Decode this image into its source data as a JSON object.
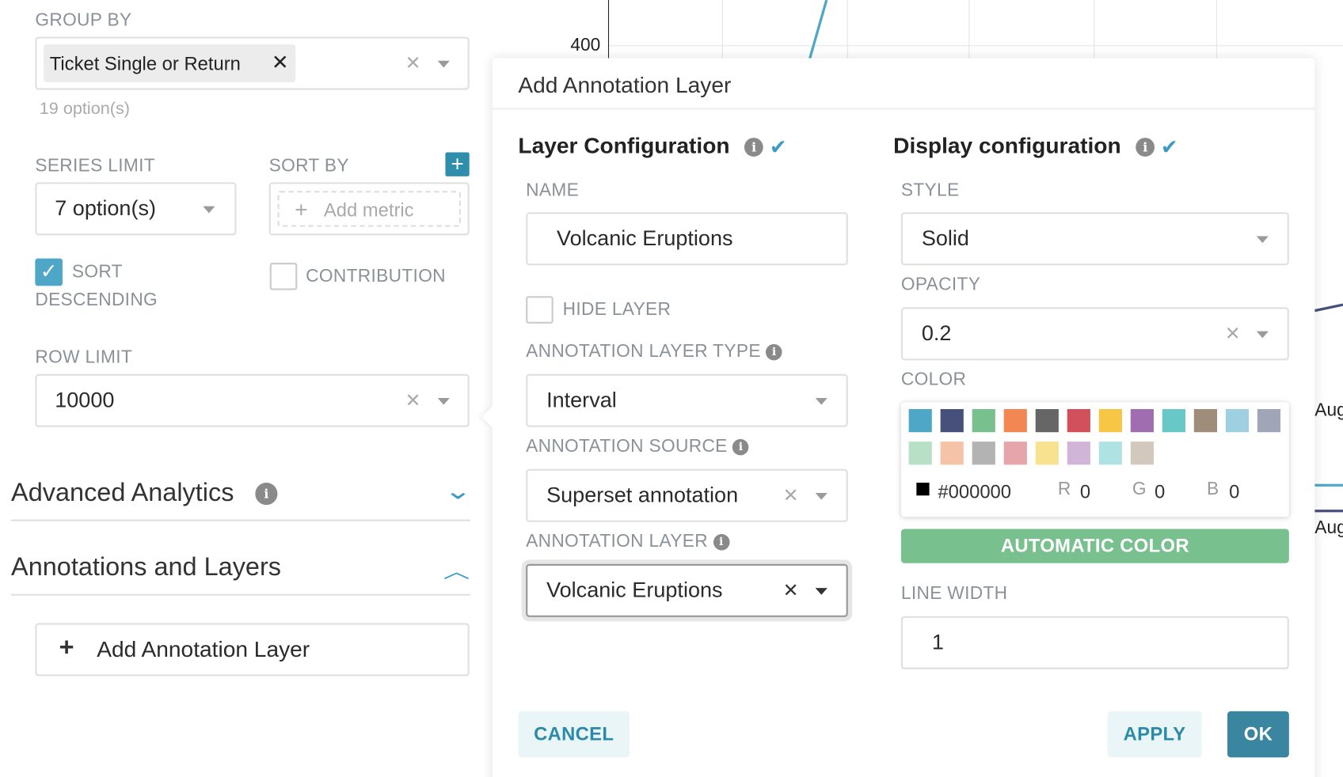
{
  "left_panel": {
    "group_by": {
      "label": "GROUP BY",
      "tag": "Ticket Single or Return",
      "hint": "19 option(s)"
    },
    "series_limit": {
      "label": "SERIES LIMIT",
      "value": "7 option(s)"
    },
    "sort_by": {
      "label": "SORT BY",
      "placeholder": "Add metric"
    },
    "sort_descending": {
      "label_line1": "SORT",
      "label_line2": "DESCENDING",
      "checked": true
    },
    "contribution": {
      "label": "CONTRIBUTION",
      "checked": false
    },
    "row_limit": {
      "label": "ROW LIMIT",
      "value": "10000"
    },
    "advanced_analytics": "Advanced Analytics",
    "annotations_and_layers": "Annotations and Layers",
    "add_annotation_layer": "Add Annotation Layer"
  },
  "chart": {
    "y_tick": "400",
    "x_ticks": [
      "Aug",
      "Aug"
    ]
  },
  "modal": {
    "title": "Add Annotation Layer",
    "layer_config": {
      "heading": "Layer Configuration",
      "name_label": "NAME",
      "name_value": "Volcanic Eruptions",
      "hide_layer_label": "HIDE LAYER",
      "hide_layer_checked": false,
      "type_label": "ANNOTATION LAYER TYPE",
      "type_value": "Interval",
      "source_label": "ANNOTATION SOURCE",
      "source_value": "Superset annotation",
      "layer_label": "ANNOTATION LAYER",
      "layer_value": "Volcanic Eruptions"
    },
    "display_config": {
      "heading": "Display configuration",
      "style_label": "STYLE",
      "style_value": "Solid",
      "opacity_label": "OPACITY",
      "opacity_value": "0.2",
      "color_label": "COLOR",
      "swatches": [
        "#4ea7c7",
        "#46507a",
        "#78c18f",
        "#f28753",
        "#666666",
        "#d1505b",
        "#f6c644",
        "#a06db0",
        "#68c8c8",
        "#9f8c79",
        "#9fd0e2",
        "#a0a5b8",
        "#b8e0c6",
        "#f5c3a8",
        "#b3b3b3",
        "#e5a5aa",
        "#f9e28f",
        "#d0b5d8",
        "#afe3e3",
        "#d2c8be"
      ],
      "hex": "#000000",
      "r_label": "R",
      "r": "0",
      "g_label": "G",
      "g": "0",
      "b_label": "B",
      "b": "0",
      "automatic_color": "AUTOMATIC COLOR",
      "line_width_label": "LINE WIDTH",
      "line_width_value": "1"
    },
    "cancel": "CANCEL",
    "apply": "APPLY",
    "ok": "OK"
  },
  "colors": {
    "accent": "#3a86a0",
    "auto_color": "#78c18f",
    "checkbox": "#4ea7c7"
  }
}
